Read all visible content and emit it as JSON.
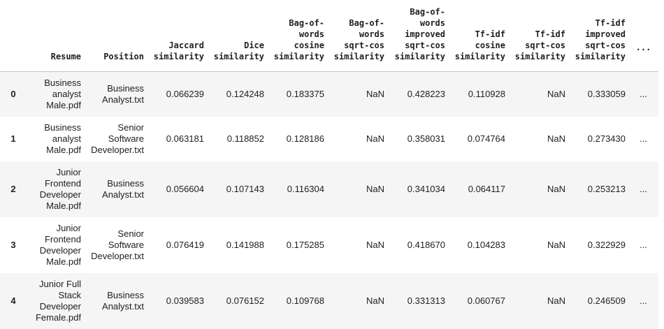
{
  "table": {
    "columns": [
      "Resume",
      "Position",
      "Jaccard\nsimilarity",
      "Dice\nsimilarity",
      "Bag-of-\nwords\ncosine\nsimilarity",
      "Bag-of-\nwords\nsqrt-cos\nsimilarity",
      "Bag-of-\nwords\nimproved\nsqrt-cos\nsimilarity",
      "Tf-idf\ncosine\nsimilarity",
      "Tf-idf\nsqrt-cos\nsimilarity",
      "Tf-idf\nimproved\nsqrt-cos\nsimilarity",
      "..."
    ],
    "rows": [
      {
        "index": "0",
        "cells": [
          "Business\nanalyst\nMale.pdf",
          "Business\nAnalyst.txt",
          "0.066239",
          "0.124248",
          "0.183375",
          "NaN",
          "0.428223",
          "0.110928",
          "NaN",
          "0.333059",
          "..."
        ]
      },
      {
        "index": "1",
        "cells": [
          "Business\nanalyst\nMale.pdf",
          "Senior\nSoftware\nDeveloper.txt",
          "0.063181",
          "0.118852",
          "0.128186",
          "NaN",
          "0.358031",
          "0.074764",
          "NaN",
          "0.273430",
          "..."
        ]
      },
      {
        "index": "2",
        "cells": [
          "Junior\nFrontend\nDeveloper\nMale.pdf",
          "Business\nAnalyst.txt",
          "0.056604",
          "0.107143",
          "0.116304",
          "NaN",
          "0.341034",
          "0.064117",
          "NaN",
          "0.253213",
          "..."
        ]
      },
      {
        "index": "3",
        "cells": [
          "Junior\nFrontend\nDeveloper\nMale.pdf",
          "Senior\nSoftware\nDeveloper.txt",
          "0.076419",
          "0.141988",
          "0.175285",
          "NaN",
          "0.418670",
          "0.104283",
          "NaN",
          "0.322929",
          "..."
        ]
      },
      {
        "index": "4",
        "cells": [
          "Junior Full\nStack\nDeveloper\nFemale.pdf",
          "Business\nAnalyst.txt",
          "0.039583",
          "0.076152",
          "0.109768",
          "NaN",
          "0.331313",
          "0.060767",
          "NaN",
          "0.246509",
          "..."
        ]
      }
    ]
  }
}
